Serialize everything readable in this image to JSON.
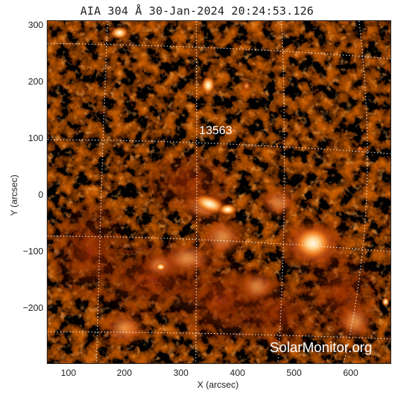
{
  "title": "AIA 304 Å 30-Jan-2024 20:24:53.126",
  "axes": {
    "x_label": "X (arcsec)",
    "y_label": "Y (arcsec)",
    "x_ticks": [
      "100",
      "200",
      "300",
      "400",
      "500",
      "600"
    ],
    "y_ticks": [
      "300",
      "200",
      "100",
      "0",
      "−100",
      "−200"
    ]
  },
  "region_label": "13563",
  "watermark": "SolarMonitor.org",
  "colors": {
    "background": "#000000",
    "plasma_dim": "#5a0f00",
    "plasma_mid": "#b83a08",
    "plasma_bright": "#ff8a2a",
    "plasma_hot": "#fff2d0",
    "grid": "#ffffff"
  }
}
